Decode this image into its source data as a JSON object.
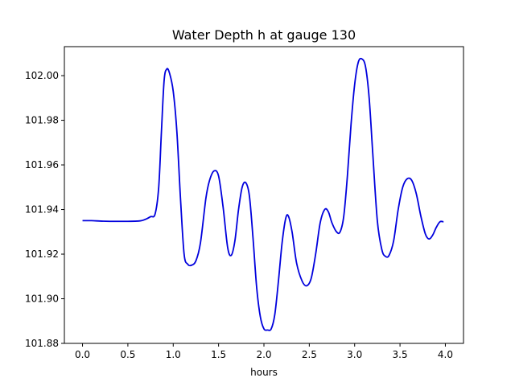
{
  "chart_data": {
    "type": "line",
    "title": "Water Depth h at gauge 130",
    "xlabel": "hours",
    "ylabel": "",
    "xlim": [
      -0.2,
      4.2
    ],
    "ylim": [
      101.88,
      102.013
    ],
    "xticks": [
      0.0,
      0.5,
      1.0,
      1.5,
      2.0,
      2.5,
      3.0,
      3.5,
      4.0
    ],
    "xtick_labels": [
      "0.0",
      "0.5",
      "1.0",
      "1.5",
      "2.0",
      "2.5",
      "3.0",
      "3.5",
      "4.0"
    ],
    "yticks": [
      101.88,
      101.9,
      101.92,
      101.94,
      101.96,
      101.98,
      102.0
    ],
    "ytick_labels": [
      "101.88",
      "101.90",
      "101.92",
      "101.94",
      "101.96",
      "101.98",
      "102.00"
    ],
    "grid": false,
    "colors": {
      "series": "#0000dd"
    },
    "series": [
      {
        "points": [
          [
            0.0,
            101.935
          ],
          [
            0.1,
            101.935
          ],
          [
            0.2,
            101.9348
          ],
          [
            0.3,
            101.9347
          ],
          [
            0.4,
            101.9347
          ],
          [
            0.5,
            101.9347
          ],
          [
            0.6,
            101.9348
          ],
          [
            0.65,
            101.935
          ],
          [
            0.7,
            101.9357
          ],
          [
            0.75,
            101.9368
          ],
          [
            0.8,
            101.938
          ],
          [
            0.84,
            101.95
          ],
          [
            0.87,
            101.975
          ],
          [
            0.9,
            101.998
          ],
          [
            0.93,
            102.003
          ],
          [
            0.96,
            102.001
          ],
          [
            1.0,
            101.993
          ],
          [
            1.04,
            101.975
          ],
          [
            1.08,
            101.945
          ],
          [
            1.12,
            101.92
          ],
          [
            1.16,
            101.9155
          ],
          [
            1.2,
            101.915
          ],
          [
            1.25,
            101.917
          ],
          [
            1.3,
            101.925
          ],
          [
            1.36,
            101.945
          ],
          [
            1.4,
            101.953
          ],
          [
            1.45,
            101.9573
          ],
          [
            1.5,
            101.955
          ],
          [
            1.55,
            101.941
          ],
          [
            1.6,
            101.923
          ],
          [
            1.64,
            101.9195
          ],
          [
            1.68,
            101.926
          ],
          [
            1.72,
            101.94
          ],
          [
            1.76,
            101.95
          ],
          [
            1.8,
            101.952
          ],
          [
            1.84,
            101.946
          ],
          [
            1.88,
            101.927
          ],
          [
            1.92,
            101.905
          ],
          [
            1.96,
            101.892
          ],
          [
            2.0,
            101.8865
          ],
          [
            2.04,
            101.886
          ],
          [
            2.08,
            101.8865
          ],
          [
            2.12,
            101.893
          ],
          [
            2.16,
            101.908
          ],
          [
            2.2,
            101.925
          ],
          [
            2.24,
            101.936
          ],
          [
            2.27,
            101.937
          ],
          [
            2.31,
            101.93
          ],
          [
            2.36,
            101.916
          ],
          [
            2.42,
            101.908
          ],
          [
            2.47,
            101.9058
          ],
          [
            2.52,
            101.909
          ],
          [
            2.57,
            101.92
          ],
          [
            2.62,
            101.934
          ],
          [
            2.67,
            101.94
          ],
          [
            2.71,
            101.939
          ],
          [
            2.75,
            101.934
          ],
          [
            2.8,
            101.93
          ],
          [
            2.84,
            101.93
          ],
          [
            2.88,
            101.937
          ],
          [
            2.92,
            101.955
          ],
          [
            2.96,
            101.978
          ],
          [
            3.0,
            101.996
          ],
          [
            3.04,
            102.006
          ],
          [
            3.08,
            102.0075
          ],
          [
            3.12,
            102.004
          ],
          [
            3.16,
            101.99
          ],
          [
            3.2,
            101.965
          ],
          [
            3.25,
            101.935
          ],
          [
            3.3,
            101.922
          ],
          [
            3.34,
            101.919
          ],
          [
            3.38,
            101.9195
          ],
          [
            3.43,
            101.926
          ],
          [
            3.48,
            101.94
          ],
          [
            3.53,
            101.95
          ],
          [
            3.58,
            101.9538
          ],
          [
            3.63,
            101.953
          ],
          [
            3.68,
            101.947
          ],
          [
            3.73,
            101.937
          ],
          [
            3.78,
            101.929
          ],
          [
            3.82,
            101.9268
          ],
          [
            3.86,
            101.9285
          ],
          [
            3.9,
            101.932
          ],
          [
            3.94,
            101.9345
          ],
          [
            3.98,
            101.9345
          ]
        ]
      }
    ]
  }
}
